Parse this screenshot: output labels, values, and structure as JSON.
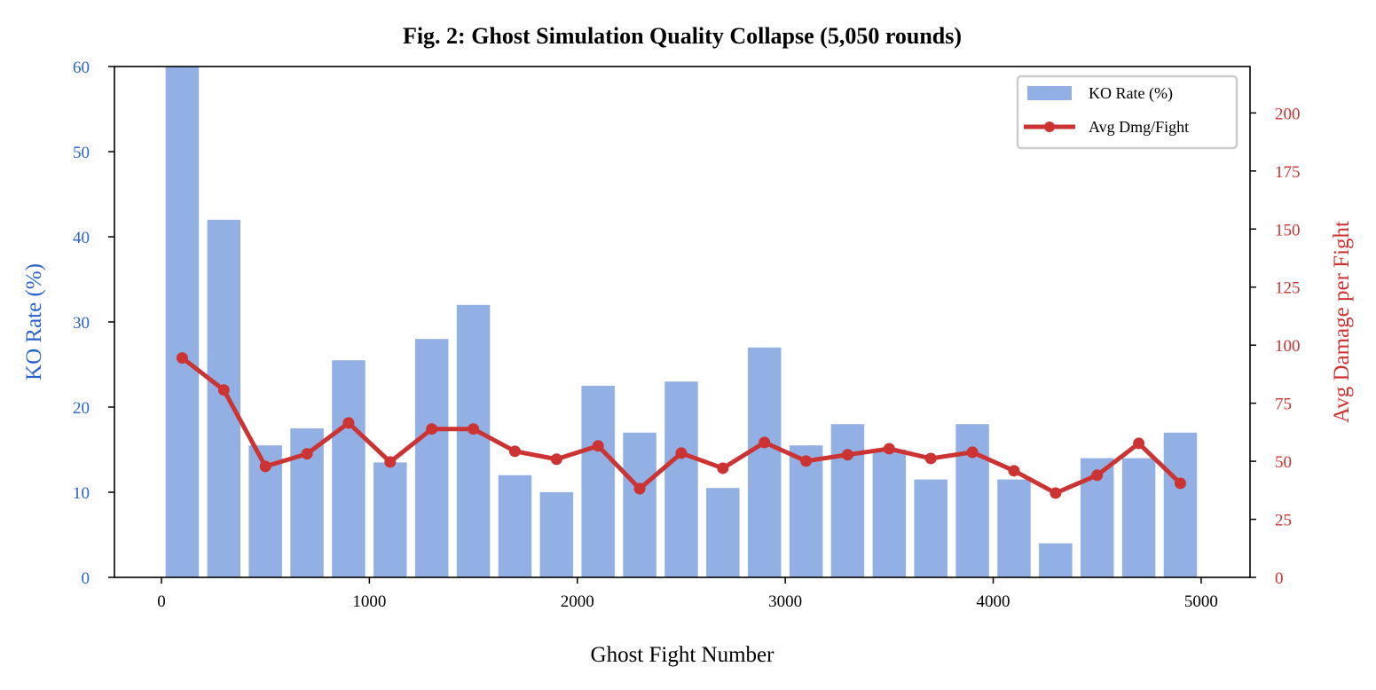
{
  "chart_data": {
    "type": "bar+line",
    "title": "Fig. 2: Ghost Simulation Quality Collapse (5,050 rounds)",
    "xlabel": "Ghost Fight Number",
    "ylabel_left": "KO Rate (%)",
    "ylabel_right": "Avg Damage per Fight",
    "xlim": [
      -226,
      5235
    ],
    "ylim_left": [
      0,
      60
    ],
    "ylim_right": [
      0,
      220
    ],
    "xticks": [
      0,
      1000,
      2000,
      3000,
      4000,
      5000
    ],
    "yticks_left": [
      0,
      10,
      20,
      30,
      40,
      50,
      60
    ],
    "yticks_right": [
      0,
      25,
      50,
      75,
      100,
      125,
      150,
      175,
      200
    ],
    "grid": false,
    "legend_position": "top-right",
    "bar_width": 160,
    "x": [
      100,
      300,
      500,
      700,
      900,
      1100,
      1300,
      1500,
      1700,
      1900,
      2100,
      2300,
      2500,
      2700,
      2900,
      3100,
      3300,
      3500,
      3700,
      3900,
      4100,
      4300,
      4500,
      4700,
      4900
    ],
    "series": [
      {
        "name": "KO Rate (%)",
        "type": "bar",
        "axis": "left",
        "color": "#92b0e4",
        "values": [
          60,
          42,
          15.5,
          17.5,
          25.5,
          13.5,
          28,
          32,
          12,
          10,
          22.5,
          17,
          23,
          10.5,
          27,
          15.5,
          18,
          15,
          11.5,
          18,
          11.5,
          4,
          14,
          14,
          17
        ]
      },
      {
        "name": "Avg Dmg/Fight",
        "type": "line",
        "axis": "right",
        "color": "#cc3333",
        "values": [
          94.5,
          80.7,
          47.8,
          53.2,
          66.5,
          49.7,
          63.9,
          63.9,
          54.3,
          50.9,
          56.6,
          38.2,
          53.5,
          47,
          58.1,
          50.1,
          52.8,
          55.4,
          51.2,
          53.9,
          45.9,
          36.3,
          44,
          57.7,
          40.5
        ]
      }
    ],
    "colors": {
      "left_axis": "#2a62c9",
      "right_axis": "#d03030"
    }
  }
}
